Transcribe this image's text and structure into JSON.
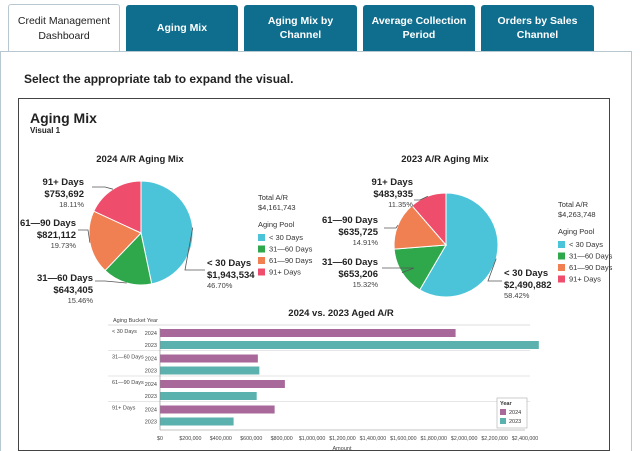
{
  "tabs": [
    {
      "label": "Credit Management Dashboard"
    },
    {
      "label": "Aging Mix"
    },
    {
      "label": "Aging Mix by Channel"
    },
    {
      "label": "Average Collection Period"
    },
    {
      "label": "Orders by Sales Channel"
    }
  ],
  "instruction": "Select the appropriate tab to expand the visual.",
  "visual": {
    "title": "Aging Mix",
    "subtitle": "Visual 1"
  },
  "colors": {
    "lt30": "#4bc4d9",
    "d31_60": "#2fa84c",
    "d61_90": "#f07f52",
    "d91": "#ee4d6b",
    "bar2024": "#a8689a",
    "bar2023": "#5bb1ad",
    "tab": "#0f6e8e"
  },
  "chart_data": [
    {
      "type": "pie",
      "title": "2024 A/R Aging Mix",
      "total_label": "Total A/R",
      "total": "$4,161,743",
      "legend_title": "Aging Pool",
      "legend": [
        "< 30 Days",
        "31—60 Days",
        "61—90 Days",
        "91+ Days"
      ],
      "slices": [
        {
          "label": "< 30 Days",
          "amount": "$1,943,534",
          "pct": "46.70%",
          "value": 46.7
        },
        {
          "label": "31—60 Days",
          "amount": "$643,405",
          "pct": "15.46%",
          "value": 15.46
        },
        {
          "label": "61—90 Days",
          "amount": "$821,112",
          "pct": "19.73%",
          "value": 19.73
        },
        {
          "label": "91+ Days",
          "amount": "$753,692",
          "pct": "18.11%",
          "value": 18.11
        }
      ]
    },
    {
      "type": "pie",
      "title": "2023 A/R Aging Mix",
      "total_label": "Total A/R",
      "total": "$4,263,748",
      "legend_title": "Aging Pool",
      "legend": [
        "< 30 Days",
        "31—60 Days",
        "61—90 Days",
        "91+ Days"
      ],
      "slices": [
        {
          "label": "< 30 Days",
          "amount": "$2,490,882",
          "pct": "58.42%",
          "value": 58.42
        },
        {
          "label": "31—60 Days",
          "amount": "$653,206",
          "pct": "15.32%",
          "value": 15.32
        },
        {
          "label": "61—90 Days",
          "amount": "$635,725",
          "pct": "14.91%",
          "value": 14.91
        },
        {
          "label": "91+ Days",
          "amount": "$483,935",
          "pct": "11.35%",
          "value": 11.35
        }
      ]
    },
    {
      "type": "bar",
      "orientation": "horizontal",
      "title": "2024 vs. 2023 Aged A/R",
      "row_header": "Aging Bucket Year",
      "xlabel": "Amount",
      "xlim": [
        0,
        2400000
      ],
      "xticks": [
        "$0",
        "$200,000",
        "$400,000",
        "$600,000",
        "$800,000",
        "$1,000,000",
        "$1,200,000",
        "$1,400,000",
        "$1,600,000",
        "$1,800,000",
        "$2,000,000",
        "$2,200,000",
        "$2,400,000"
      ],
      "legend_title": "Year",
      "legend": [
        "2024",
        "2023"
      ],
      "groups": [
        {
          "label": "< 30 Days",
          "rows": [
            {
              "year": "2024",
              "value": 1943534
            },
            {
              "year": "2023",
              "value": 2490882
            }
          ]
        },
        {
          "label": "31—60 Days",
          "rows": [
            {
              "year": "2024",
              "value": 643405
            },
            {
              "year": "2023",
              "value": 653206
            }
          ]
        },
        {
          "label": "61—90 Days",
          "rows": [
            {
              "year": "2024",
              "value": 821112
            },
            {
              "year": "2023",
              "value": 635725
            }
          ]
        },
        {
          "label": "91+ Days",
          "rows": [
            {
              "year": "2024",
              "value": 753692
            },
            {
              "year": "2023",
              "value": 483935
            }
          ]
        }
      ]
    }
  ]
}
